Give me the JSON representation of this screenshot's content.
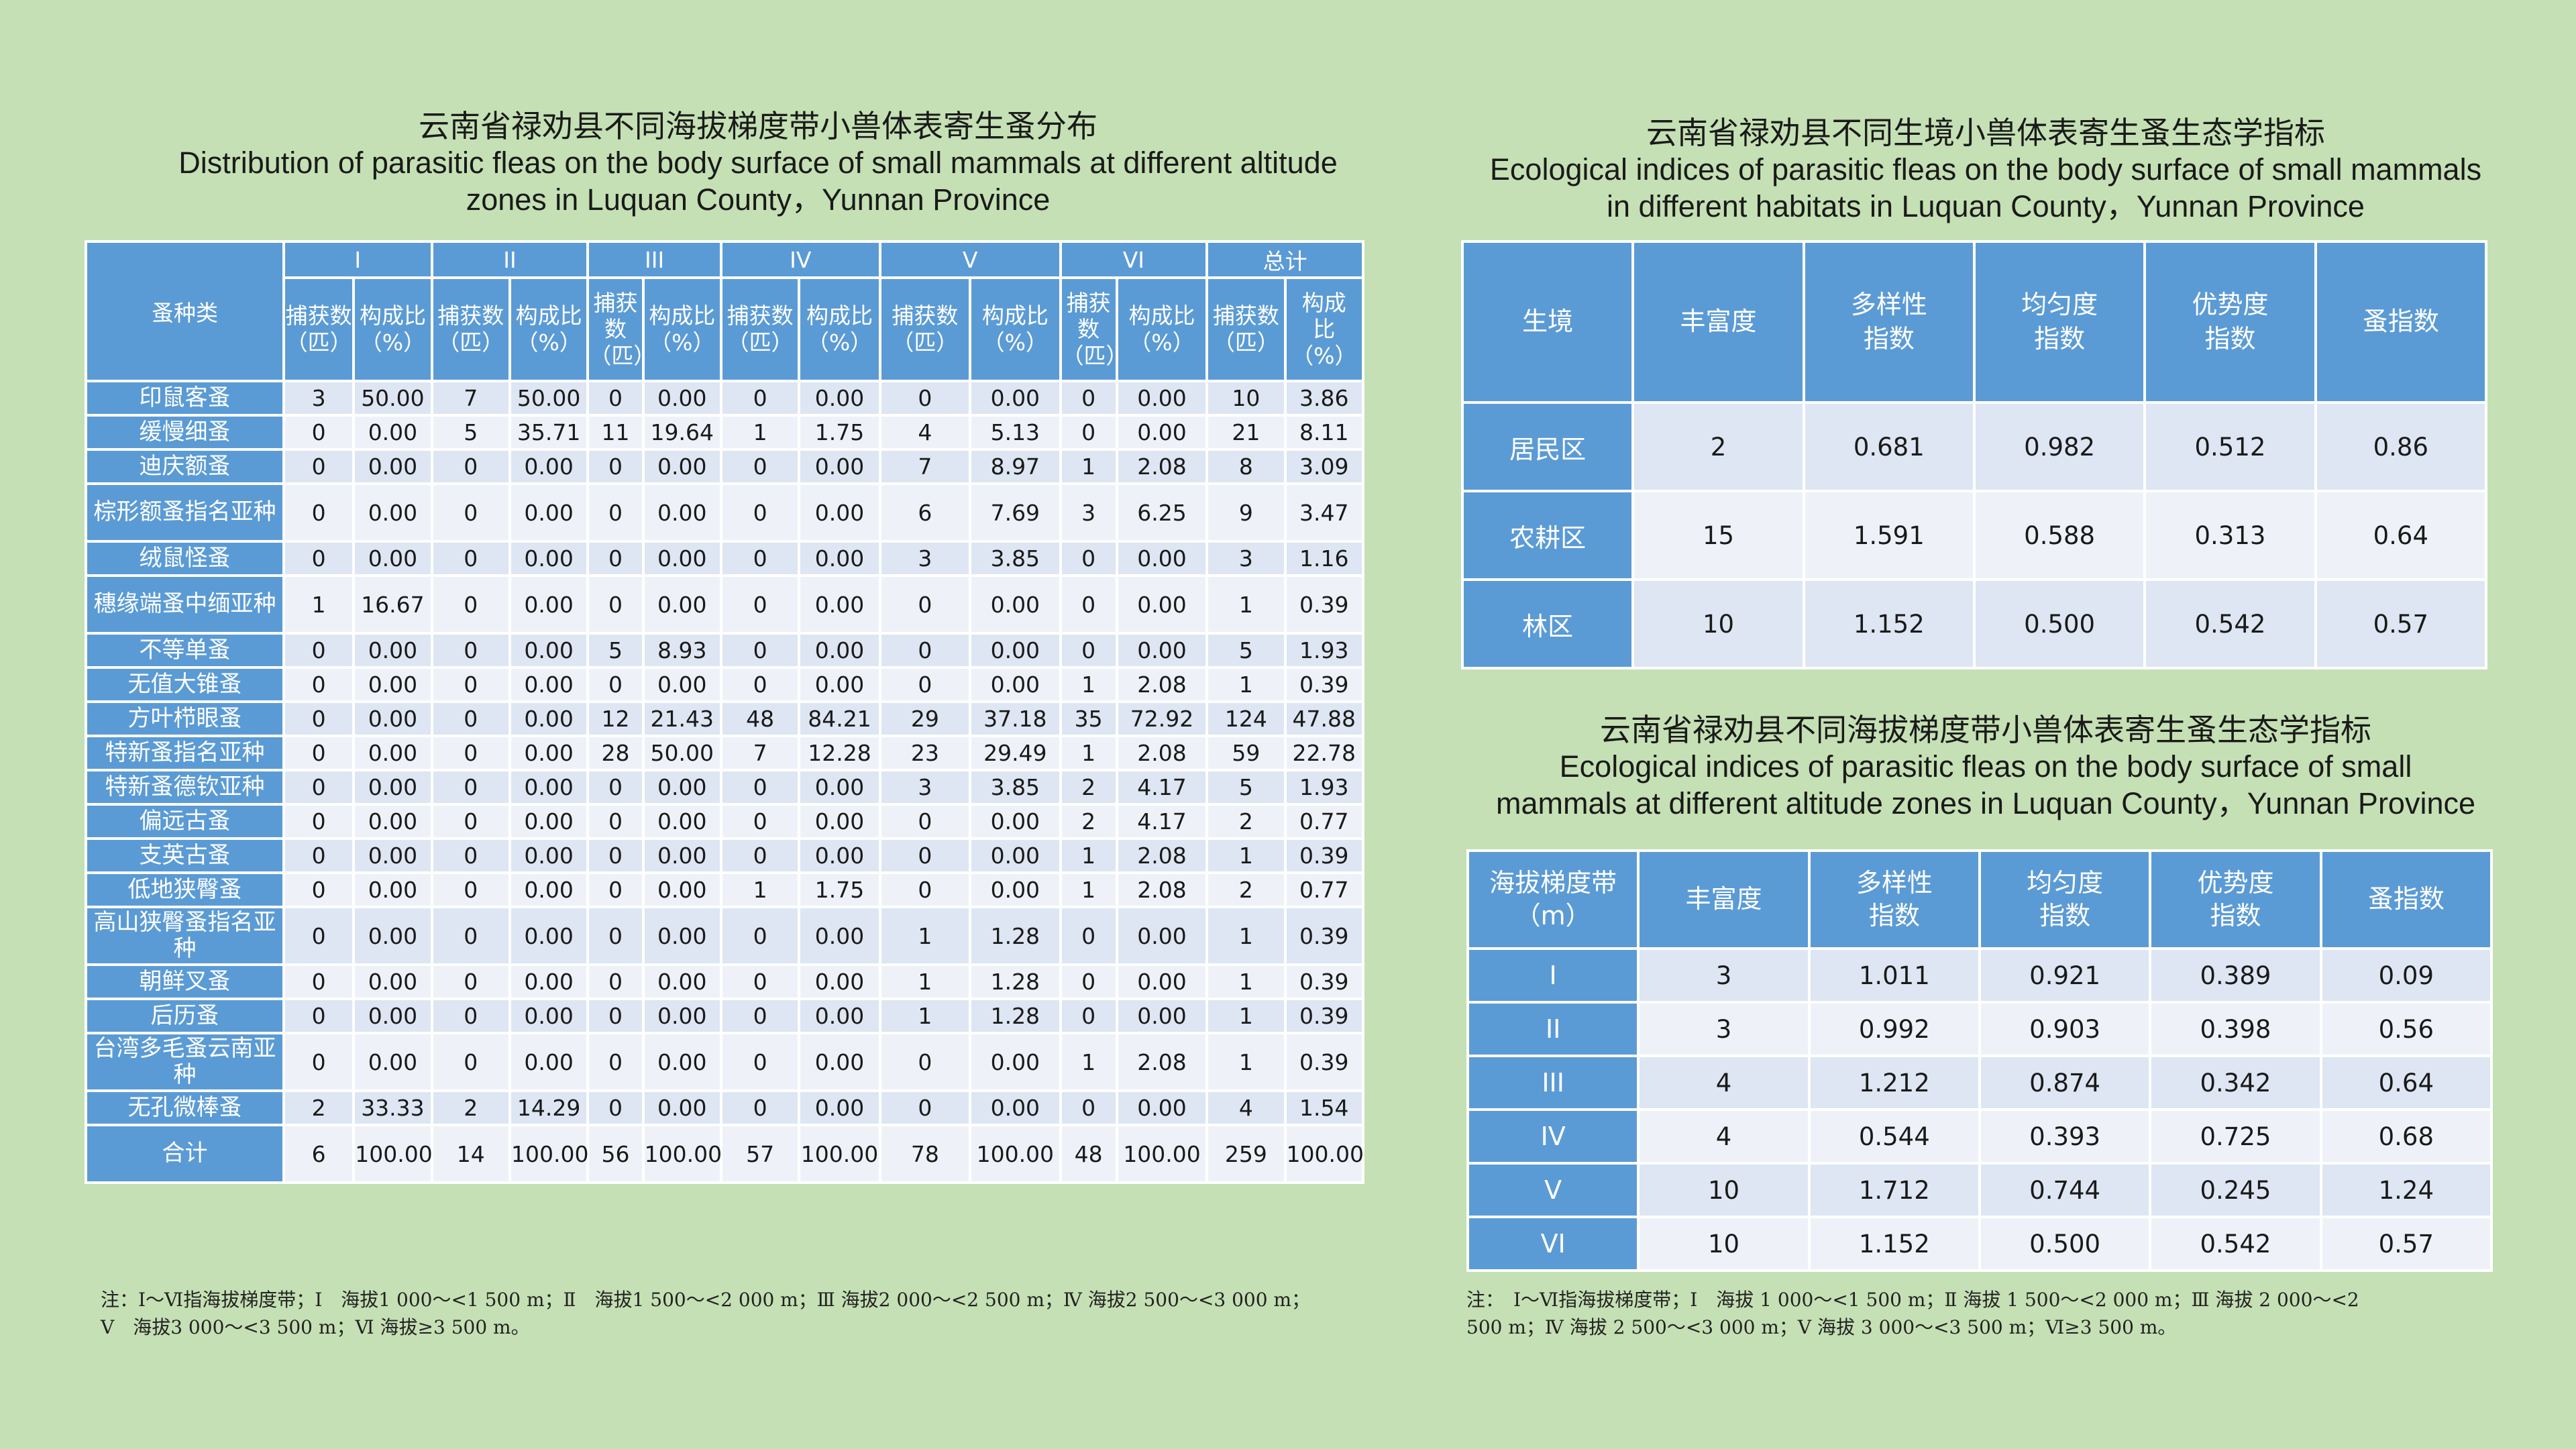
{
  "left": {
    "title_cn": "云南省禄劝县不同海拔梯度带小兽体表寄生蚤分布",
    "title_en_1": "Distribution of parasitic fleas on the body surface of small mammals at different altitude",
    "title_en_2": "zones in Luquan County，Yunnan Province",
    "species_header": "蚤种类",
    "zones": [
      "I",
      "II",
      "III",
      "IV",
      "V",
      "VI",
      "总计"
    ],
    "sub_headers": {
      "count_narrow": [
        "捕获",
        "数",
        "（匹）"
      ],
      "count": [
        "捕获数",
        "（匹）"
      ],
      "ratio": [
        "构成比",
        "（%）"
      ],
      "ratio_total": [
        "构成",
        "比（%）"
      ]
    },
    "rows": [
      {
        "name": "印鼠客蚤",
        "v": [
          "3",
          "50.00",
          "7",
          "50.00",
          "0",
          "0.00",
          "0",
          "0.00",
          "0",
          "0.00",
          "0",
          "0.00",
          "10",
          "3.86"
        ]
      },
      {
        "name": "缓慢细蚤",
        "v": [
          "0",
          "0.00",
          "5",
          "35.71",
          "11",
          "19.64",
          "1",
          "1.75",
          "4",
          "5.13",
          "0",
          "0.00",
          "21",
          "8.11"
        ]
      },
      {
        "name": "迪庆额蚤",
        "v": [
          "0",
          "0.00",
          "0",
          "0.00",
          "0",
          "0.00",
          "0",
          "0.00",
          "7",
          "8.97",
          "1",
          "2.08",
          "8",
          "3.09"
        ]
      },
      {
        "name": "棕形额蚤指名亚种",
        "v": [
          "0",
          "0.00",
          "0",
          "0.00",
          "0",
          "0.00",
          "0",
          "0.00",
          "6",
          "7.69",
          "3",
          "6.25",
          "9",
          "3.47"
        ]
      },
      {
        "name": "绒鼠怪蚤",
        "v": [
          "0",
          "0.00",
          "0",
          "0.00",
          "0",
          "0.00",
          "0",
          "0.00",
          "3",
          "3.85",
          "0",
          "0.00",
          "3",
          "1.16"
        ]
      },
      {
        "name": "穗缘端蚤中缅亚种",
        "v": [
          "1",
          "16.67",
          "0",
          "0.00",
          "0",
          "0.00",
          "0",
          "0.00",
          "0",
          "0.00",
          "0",
          "0.00",
          "1",
          "0.39"
        ]
      },
      {
        "name": "不等单蚤",
        "v": [
          "0",
          "0.00",
          "0",
          "0.00",
          "5",
          "8.93",
          "0",
          "0.00",
          "0",
          "0.00",
          "0",
          "0.00",
          "5",
          "1.93"
        ]
      },
      {
        "name": "无值大锥蚤",
        "v": [
          "0",
          "0.00",
          "0",
          "0.00",
          "0",
          "0.00",
          "0",
          "0.00",
          "0",
          "0.00",
          "1",
          "2.08",
          "1",
          "0.39"
        ]
      },
      {
        "name": "方叶栉眼蚤",
        "v": [
          "0",
          "0.00",
          "0",
          "0.00",
          "12",
          "21.43",
          "48",
          "84.21",
          "29",
          "37.18",
          "35",
          "72.92",
          "124",
          "47.88"
        ]
      },
      {
        "name": "特新蚤指名亚种",
        "v": [
          "0",
          "0.00",
          "0",
          "0.00",
          "28",
          "50.00",
          "7",
          "12.28",
          "23",
          "29.49",
          "1",
          "2.08",
          "59",
          "22.78"
        ]
      },
      {
        "name": "特新蚤德钦亚种",
        "v": [
          "0",
          "0.00",
          "0",
          "0.00",
          "0",
          "0.00",
          "0",
          "0.00",
          "3",
          "3.85",
          "2",
          "4.17",
          "5",
          "1.93"
        ]
      },
      {
        "name": "偏远古蚤",
        "v": [
          "0",
          "0.00",
          "0",
          "0.00",
          "0",
          "0.00",
          "0",
          "0.00",
          "0",
          "0.00",
          "2",
          "4.17",
          "2",
          "0.77"
        ]
      },
      {
        "name": "支英古蚤",
        "v": [
          "0",
          "0.00",
          "0",
          "0.00",
          "0",
          "0.00",
          "0",
          "0.00",
          "0",
          "0.00",
          "1",
          "2.08",
          "1",
          "0.39"
        ]
      },
      {
        "name": "低地狭臀蚤",
        "v": [
          "0",
          "0.00",
          "0",
          "0.00",
          "0",
          "0.00",
          "1",
          "1.75",
          "0",
          "0.00",
          "1",
          "2.08",
          "2",
          "0.77"
        ]
      },
      {
        "name": "高山狭臀蚤指名亚种",
        "v": [
          "0",
          "0.00",
          "0",
          "0.00",
          "0",
          "0.00",
          "0",
          "0.00",
          "1",
          "1.28",
          "0",
          "0.00",
          "1",
          "0.39"
        ]
      },
      {
        "name": "朝鲜叉蚤",
        "v": [
          "0",
          "0.00",
          "0",
          "0.00",
          "0",
          "0.00",
          "0",
          "0.00",
          "1",
          "1.28",
          "0",
          "0.00",
          "1",
          "0.39"
        ]
      },
      {
        "name": "后历蚤",
        "v": [
          "0",
          "0.00",
          "0",
          "0.00",
          "0",
          "0.00",
          "0",
          "0.00",
          "1",
          "1.28",
          "0",
          "0.00",
          "1",
          "0.39"
        ]
      },
      {
        "name": "台湾多毛蚤云南亚种",
        "v": [
          "0",
          "0.00",
          "0",
          "0.00",
          "0",
          "0.00",
          "0",
          "0.00",
          "0",
          "0.00",
          "1",
          "2.08",
          "1",
          "0.39"
        ]
      },
      {
        "name": "无孔微棒蚤",
        "v": [
          "2",
          "33.33",
          "2",
          "14.29",
          "0",
          "0.00",
          "0",
          "0.00",
          "0",
          "0.00",
          "0",
          "0.00",
          "4",
          "1.54"
        ]
      },
      {
        "name": "合计",
        "v": [
          "6",
          "100.00",
          "14",
          "100.00",
          "56",
          "100.00",
          "57",
          "100.00",
          "78",
          "100.00",
          "48",
          "100.00",
          "259",
          "100.00"
        ]
      }
    ],
    "note_1": "注：Ⅰ～Ⅵ指海拔梯度带；Ⅰ　海拔1 000～<1 500 m；Ⅱ　海拔1 500～<2 000 m；Ⅲ 海拔2 000～<2 500 m；Ⅳ 海拔2 500～<3 000 m；",
    "note_2": "Ⅴ　海拔3 000～<3 500 m；Ⅵ 海拔≥3 500 m。"
  },
  "habitat": {
    "title_cn": "云南省禄劝县不同生境小兽体表寄生蚤生态学指标",
    "title_en_1": "Ecological indices of parasitic fleas on the body surface of small mammals",
    "title_en_2": "in different habitats in Luquan County，Yunnan Province",
    "headers": [
      [
        "生境"
      ],
      [
        "丰富度"
      ],
      [
        "多样性",
        "指数"
      ],
      [
        "均匀度",
        "指数"
      ],
      [
        "优势度",
        "指数"
      ],
      [
        "蚤指数"
      ]
    ],
    "rows": [
      {
        "name": "居民区",
        "v": [
          "2",
          "0.681",
          "0.982",
          "0.512",
          "0.86"
        ]
      },
      {
        "name": "农耕区",
        "v": [
          "15",
          "1.591",
          "0.588",
          "0.313",
          "0.64"
        ]
      },
      {
        "name": "林区",
        "v": [
          "10",
          "1.152",
          "0.500",
          "0.542",
          "0.57"
        ]
      }
    ]
  },
  "altitude": {
    "title_cn": "云南省禄劝县不同海拔梯度带小兽体表寄生蚤生态学指标",
    "title_en_1": "Ecological indices of parasitic fleas on the body surface of small",
    "title_en_2": "mammals at different altitude zones in Luquan County，Yunnan Province",
    "headers": [
      [
        "海拔梯度带",
        "（m）"
      ],
      [
        "丰富度"
      ],
      [
        "多样性",
        "指数"
      ],
      [
        "均匀度",
        "指数"
      ],
      [
        "优势度",
        "指数"
      ],
      [
        "蚤指数"
      ]
    ],
    "rows": [
      {
        "name": "I",
        "v": [
          "3",
          "1.011",
          "0.921",
          "0.389",
          "0.09"
        ]
      },
      {
        "name": "II",
        "v": [
          "3",
          "0.992",
          "0.903",
          "0.398",
          "0.56"
        ]
      },
      {
        "name": "III",
        "v": [
          "4",
          "1.212",
          "0.874",
          "0.342",
          "0.64"
        ]
      },
      {
        "name": "IV",
        "v": [
          "4",
          "0.544",
          "0.393",
          "0.725",
          "0.68"
        ]
      },
      {
        "name": "V",
        "v": [
          "10",
          "1.712",
          "0.744",
          "0.245",
          "1.24"
        ]
      },
      {
        "name": "VI",
        "v": [
          "10",
          "1.152",
          "0.500",
          "0.542",
          "0.57"
        ]
      }
    ],
    "note_1": "注：　Ⅰ～Ⅵ指海拔梯度带；Ⅰ　海拔 1 000～<1 500 m；Ⅱ 海拔 1 500～<2 000 m；Ⅲ 海拔 2 000～<2",
    "note_2": "500 m；Ⅳ 海拔 2 500～<3 000 m；Ⅴ 海拔 3 000～<3 500 m；Ⅵ≥3 500 m。"
  },
  "colors": {
    "background": "#c5e0b4",
    "header_blue": "#5b9bd5",
    "row_light": "#dde6f2",
    "row_lighter": "#eef2f8"
  }
}
